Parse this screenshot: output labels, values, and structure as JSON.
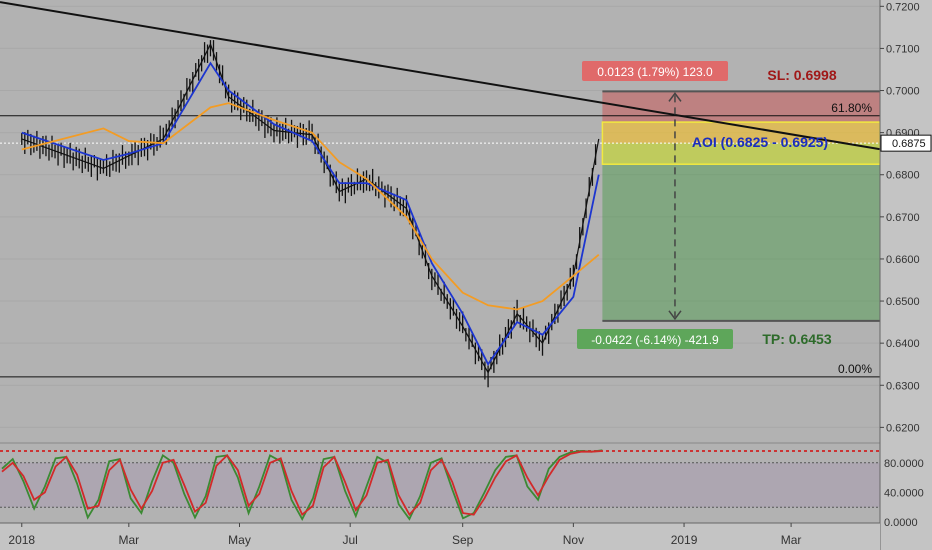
{
  "chart_data": {
    "type": "line",
    "title": "",
    "xlabel": "",
    "ylabel": "",
    "x_ticks": [
      "2018",
      "Mar",
      "May",
      "Jul",
      "Sep",
      "Nov",
      "2019",
      "Mar"
    ],
    "y_ticks": [
      "0.7200",
      "0.7100",
      "0.7000",
      "0.6900",
      "0.6800",
      "0.6700",
      "0.6600",
      "0.6500",
      "0.6400",
      "0.6300",
      "0.6200"
    ],
    "ylim": [
      0.617,
      0.7215
    ],
    "current_price": 0.6875,
    "current_price_label": "0.6875",
    "series": [
      {
        "kind": "price",
        "color": "#111111",
        "x": [
          "2018-01",
          "2018-02-15",
          "2018-03",
          "2018-03-20",
          "2018-04-15",
          "2018-04-25",
          "2018-05-20",
          "2018-06-10",
          "2018-06-25",
          "2018-07-10",
          "2018-08-01",
          "2018-08-15",
          "2018-09-01",
          "2018-09-15",
          "2018-10-01",
          "2018-10-15",
          "2018-11-01",
          "2018-11-15"
        ],
        "values": [
          0.6885,
          0.6815,
          0.6845,
          0.6885,
          0.711,
          0.6985,
          0.6905,
          0.6895,
          0.676,
          0.679,
          0.672,
          0.656,
          0.644,
          0.633,
          0.647,
          0.64,
          0.656,
          0.6885
        ]
      },
      {
        "kind": "fast-ma",
        "color": "#1c35d0",
        "x": [
          "2018-01",
          "2018-02-15",
          "2018-03",
          "2018-03-20",
          "2018-04-15",
          "2018-04-25",
          "2018-05-20",
          "2018-06-10",
          "2018-06-25",
          "2018-07-10",
          "2018-08-01",
          "2018-08-15",
          "2018-09-01",
          "2018-09-15",
          "2018-10-01",
          "2018-10-15",
          "2018-11-01",
          "2018-11-15"
        ],
        "values": [
          0.69,
          0.6835,
          0.685,
          0.6875,
          0.7065,
          0.7,
          0.692,
          0.688,
          0.678,
          0.678,
          0.674,
          0.659,
          0.647,
          0.635,
          0.645,
          0.642,
          0.651,
          0.68
        ]
      },
      {
        "kind": "slow-ma",
        "color": "#f39c24",
        "x": [
          "2018-01",
          "2018-02-15",
          "2018-03",
          "2018-03-20",
          "2018-04-15",
          "2018-04-25",
          "2018-05-20",
          "2018-06-10",
          "2018-06-25",
          "2018-07-10",
          "2018-08-01",
          "2018-08-15",
          "2018-09-01",
          "2018-09-15",
          "2018-10-01",
          "2018-10-15",
          "2018-11-01",
          "2018-11-15"
        ],
        "values": [
          0.686,
          0.691,
          0.688,
          0.6875,
          0.696,
          0.697,
          0.693,
          0.69,
          0.683,
          0.679,
          0.67,
          0.66,
          0.652,
          0.649,
          0.648,
          0.65,
          0.656,
          0.661
        ]
      }
    ],
    "trendline": {
      "color": "#111111",
      "from": [
        "2017-12-20",
        0.721
      ],
      "to": [
        "2019-04-20",
        0.686
      ]
    },
    "horizontal_levels": [
      {
        "name": "61.8-level",
        "value": 0.694,
        "label": "61.80%",
        "color": "#111111"
      },
      {
        "name": "0-level",
        "value": 0.632,
        "label": "0.00%",
        "color": "#111111"
      }
    ],
    "trade": {
      "entry": 0.6875,
      "stop_loss": 0.6998,
      "take_profit": 0.6453,
      "sl_label": "SL: 0.6998",
      "tp_label": "TP: 0.6453",
      "sl_box_label": "0.0123 (1.79%) 123.0",
      "tp_box_label": "-0.0422 (-6.14%) -421.9",
      "sl_color": "#cc4444",
      "tp_color": "#449944"
    },
    "aoi": {
      "low": 0.6825,
      "high": 0.6925,
      "label": "AOI (0.6825 - 0.6925)",
      "color": "#f2e93f",
      "text_color": "#1a2dbf"
    },
    "oscillator": {
      "ylim": [
        0,
        100
      ],
      "y_ticks": [
        "80.0000",
        "40.0000",
        "0.0000"
      ],
      "levels": [
        80,
        20
      ],
      "k_color": "#3b8a33",
      "d_color": "#d22a2a",
      "k_values": [
        72,
        85,
        55,
        18,
        48,
        86,
        88,
        52,
        6,
        30,
        82,
        85,
        32,
        12,
        55,
        90,
        80,
        38,
        6,
        35,
        88,
        90,
        60,
        12,
        48,
        90,
        82,
        30,
        4,
        32,
        85,
        88,
        42,
        8,
        48,
        88,
        80,
        24,
        4,
        35,
        80,
        86,
        44,
        5,
        12,
        40,
        70,
        88,
        90,
        48,
        30,
        72,
        88,
        94,
        96,
        95,
        97
      ],
      "d_values": [
        68,
        80,
        62,
        30,
        40,
        75,
        88,
        64,
        18,
        22,
        70,
        84,
        44,
        18,
        42,
        80,
        84,
        50,
        14,
        26,
        76,
        90,
        70,
        22,
        38,
        80,
        86,
        42,
        10,
        22,
        74,
        88,
        54,
        16,
        36,
        80,
        84,
        36,
        10,
        26,
        70,
        84,
        54,
        12,
        10,
        32,
        60,
        82,
        90,
        60,
        36,
        62,
        84,
        92,
        95,
        95,
        96
      ]
    }
  }
}
